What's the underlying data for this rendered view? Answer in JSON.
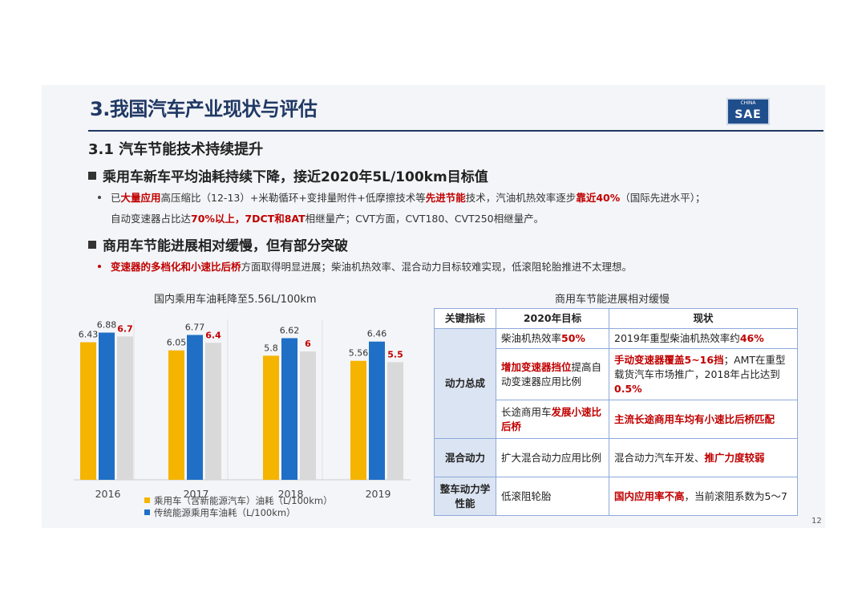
{
  "header": {
    "title": "3.我国汽车产业现状与评估",
    "logo_top": "CHINA",
    "logo_main": "SAE"
  },
  "section": {
    "subtitle": "3.1 汽车节能技术持续提升",
    "bullet1_heading": "乘用车新车平均油耗持续下降，接近2020年5L/100km目标值",
    "bullet1_text": [
      {
        "t": "已",
        "r": false
      },
      {
        "t": "大量应用",
        "r": true
      },
      {
        "t": "高压缩比（12-13）+米勒循环+变排量附件+低摩擦技术等",
        "r": false
      },
      {
        "t": "先进节能",
        "r": true
      },
      {
        "t": "技术，汽油机热效率逐步",
        "r": false
      },
      {
        "t": "靠近40%",
        "r": true
      },
      {
        "t": "（国际先进水平）；",
        "r": false
      }
    ],
    "bullet1_text2": [
      {
        "t": "自动变速器占比达",
        "r": false
      },
      {
        "t": "70%以上，7DCT和8AT",
        "r": true
      },
      {
        "t": "相继量产；CVT方面，CVT180、CVT250相继量产。",
        "r": false
      }
    ],
    "bullet2_heading": "商用车节能进展相对缓慢，但有部分突破",
    "bullet2_text": [
      {
        "t": "变速器的多档化和小速比后桥",
        "r": true
      },
      {
        "t": "方面取得明显进展；柴油机热效率、混合动力目标较难实现，低滚阻轮胎推进不太理想。",
        "r": false
      }
    ]
  },
  "chart_data": {
    "type": "bar",
    "title": "国内乘用车油耗降至5.56L/100km",
    "categories": [
      "2016",
      "2017",
      "2018",
      "2019"
    ],
    "series": [
      {
        "name": "乘用车（含新能源汽车）油耗（L/100km）",
        "color": "#f5b400",
        "values": [
          6.43,
          6.05,
          5.8,
          5.56
        ]
      },
      {
        "name": "传统能源乘用车油耗（L/100km）",
        "color": "#1f6fc6",
        "values": [
          6.88,
          6.77,
          6.62,
          6.46
        ]
      },
      {
        "name": "",
        "color": "#d9d9d9",
        "values": [
          6.7,
          6.4,
          6,
          5.5
        ]
      }
    ],
    "ylim": [
      0,
      7.5
    ],
    "value_label_colors": [
      "#333333",
      "#333333",
      "#c00000"
    ]
  },
  "table": {
    "title": "商用车节能进展相对缓慢",
    "headers": [
      "关键指标",
      "2020年目标",
      "现状"
    ],
    "rows": [
      {
        "key": "动力总成",
        "rowspan": 3,
        "target": [
          {
            "t": "柴油机热效率",
            "r": false
          },
          {
            "t": "50%",
            "r": true
          }
        ],
        "status": [
          {
            "t": "2019年重型柴油机热效率约",
            "r": false
          },
          {
            "t": "46%",
            "r": true
          }
        ]
      },
      {
        "target": [
          {
            "t": "增加变速器挡位",
            "r": true
          },
          {
            "t": "提高自动变速器应用比例",
            "r": false
          }
        ],
        "status": [
          {
            "t": "手动变速器覆盖5~16挡",
            "r": true
          },
          {
            "t": "；AMT在重型载货汽车市场推广，2018年占比达到",
            "r": false
          },
          {
            "t": "0.5%",
            "r": true
          }
        ]
      },
      {
        "target": [
          {
            "t": "长途商用车",
            "r": false
          },
          {
            "t": "发展小速比后桥",
            "r": true
          }
        ],
        "status": [
          {
            "t": "主流长途商用车均有小速比后桥匹配",
            "r": true
          }
        ]
      },
      {
        "key": "混合动力",
        "rowspan": 1,
        "target": [
          {
            "t": "扩大混合动力应用比例",
            "r": false
          }
        ],
        "status": [
          {
            "t": "混合动力汽车开发、",
            "r": false
          },
          {
            "t": "推广力度较弱",
            "r": true
          }
        ]
      },
      {
        "key": "整车动力学性能",
        "rowspan": 1,
        "target": [
          {
            "t": "低滚阻轮胎",
            "r": false
          }
        ],
        "status": [
          {
            "t": "国内应用率不高",
            "r": true
          },
          {
            "t": "，当前滚阻系数为5～7",
            "r": false
          }
        ]
      }
    ]
  },
  "page_number": "12"
}
